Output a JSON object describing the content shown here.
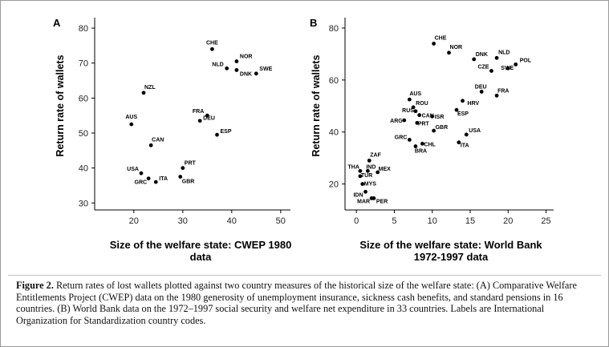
{
  "chart_data": [
    {
      "type": "scatter",
      "panel": "A",
      "xlabel": "Size of the welfare state: CWEP 1980\ndata",
      "ylabel": "Return rate of wallets",
      "xlim": [
        12,
        52
      ],
      "ylim": [
        28,
        83
      ],
      "xticks": [
        20,
        30,
        40,
        50
      ],
      "yticks": [
        30,
        40,
        50,
        60,
        70,
        80
      ],
      "points": [
        {
          "label": "CHE",
          "x": 36,
          "y": 74
        },
        {
          "label": "NOR",
          "x": 41,
          "y": 70.5
        },
        {
          "label": "NLD",
          "x": 39,
          "y": 68.5
        },
        {
          "label": "DNK",
          "x": 41,
          "y": 68
        },
        {
          "label": "SWE",
          "x": 45,
          "y": 67
        },
        {
          "label": "NZL",
          "x": 22,
          "y": 61.5
        },
        {
          "label": "FRA",
          "x": 35,
          "y": 55
        },
        {
          "label": "DEU",
          "x": 33.5,
          "y": 53.5
        },
        {
          "label": "ESP",
          "x": 37,
          "y": 49.5
        },
        {
          "label": "AUS",
          "x": 19.5,
          "y": 52.5
        },
        {
          "label": "CAN",
          "x": 23.5,
          "y": 46.5
        },
        {
          "label": "USA",
          "x": 21.5,
          "y": 38.5
        },
        {
          "label": "GRC",
          "x": 23,
          "y": 37
        },
        {
          "label": "ITA",
          "x": 24.5,
          "y": 36
        },
        {
          "label": "PRT",
          "x": 30,
          "y": 40
        },
        {
          "label": "GBR",
          "x": 29.5,
          "y": 37.5
        }
      ]
    },
    {
      "type": "scatter",
      "panel": "B",
      "xlabel": "Size of the welfare state: World Bank\n1972-1997 data",
      "ylabel": "Return rate of wallets",
      "xlim": [
        -1.5,
        26
      ],
      "ylim": [
        10,
        84
      ],
      "xticks": [
        0,
        5,
        10,
        15,
        20,
        25
      ],
      "yticks": [
        20,
        40,
        60,
        80
      ],
      "points": [
        {
          "label": "CHE",
          "x": 10.2,
          "y": 74
        },
        {
          "label": "NOR",
          "x": 12.2,
          "y": 70.5
        },
        {
          "label": "DNK",
          "x": 15.5,
          "y": 68
        },
        {
          "label": "NLD",
          "x": 18.5,
          "y": 68.5
        },
        {
          "label": "POL",
          "x": 21,
          "y": 66
        },
        {
          "label": "CZE",
          "x": 17.8,
          "y": 63.5
        },
        {
          "label": "SWE",
          "x": 20,
          "y": 64.5
        },
        {
          "label": "DEU",
          "x": 16.5,
          "y": 55.5
        },
        {
          "label": "FRA",
          "x": 18.5,
          "y": 54
        },
        {
          "label": "HRV",
          "x": 14,
          "y": 52
        },
        {
          "label": "AUS",
          "x": 7,
          "y": 52.5
        },
        {
          "label": "ROU",
          "x": 7.5,
          "y": 49.5
        },
        {
          "label": "RUS",
          "x": 7.8,
          "y": 48
        },
        {
          "label": "CAN",
          "x": 8.3,
          "y": 46.5
        },
        {
          "label": "ISR",
          "x": 10,
          "y": 46
        },
        {
          "label": "ESP",
          "x": 13.2,
          "y": 48.5
        },
        {
          "label": "ARG",
          "x": 6.3,
          "y": 44.5
        },
        {
          "label": "PRT",
          "x": 8,
          "y": 43.5
        },
        {
          "label": "USA",
          "x": 14.5,
          "y": 39
        },
        {
          "label": "GBR",
          "x": 10.2,
          "y": 40.5
        },
        {
          "label": "GRC",
          "x": 7,
          "y": 37
        },
        {
          "label": "CHL",
          "x": 8.7,
          "y": 35.5
        },
        {
          "label": "ITA",
          "x": 13.5,
          "y": 36
        },
        {
          "label": "BRA",
          "x": 7.8,
          "y": 34.5
        },
        {
          "label": "ZAF",
          "x": 1.7,
          "y": 29
        },
        {
          "label": "THA",
          "x": 0.5,
          "y": 25
        },
        {
          "label": "IND",
          "x": 1.5,
          "y": 25
        },
        {
          "label": "MEX",
          "x": 2.8,
          "y": 24.5
        },
        {
          "label": "TUR",
          "x": 0.5,
          "y": 23
        },
        {
          "label": "MYS",
          "x": 0.8,
          "y": 20
        },
        {
          "label": "IDN",
          "x": 1.2,
          "y": 17
        },
        {
          "label": "MAR",
          "x": 2,
          "y": 14.5
        },
        {
          "label": "PER",
          "x": 2.3,
          "y": 14.5
        }
      ]
    }
  ],
  "caption": {
    "label": "Figure 2.",
    "text": "Return rates of lost wallets plotted against two country measures of the historical size of the welfare state: (A) Comparative Welfare Entitlements Project (CWEP) data on the 1980 generosity of unemployment insurance, sickness cash benefits, and standard pensions in 16 countries. (B) World Bank data on the 1972–1997 social security and welfare net expenditure in 33 countries. Labels are International Organization for Standardization country codes."
  }
}
